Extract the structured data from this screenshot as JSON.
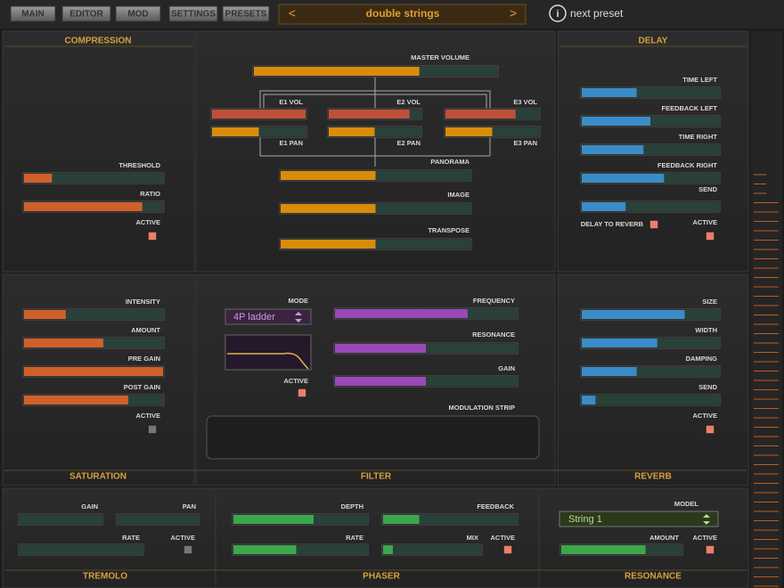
{
  "tabs": [
    "MAIN",
    "EDITOR",
    "MOD",
    "SETTINGS",
    "PRESETS"
  ],
  "preset": {
    "prev": "<",
    "name": "double strings",
    "next": ">"
  },
  "next_preset": {
    "icon": "i",
    "label": "next preset"
  },
  "panels": {
    "compression": {
      "title": "COMPRESSION",
      "color": "#d0602a",
      "sliders": [
        {
          "label": "THRESHOLD",
          "value": 0.2
        },
        {
          "label": "RATIO",
          "value": 0.85
        }
      ],
      "checks": [
        {
          "label": "ACTIVE",
          "on": true
        }
      ]
    },
    "mixer": {
      "color": "#d98c0a",
      "sliders": [
        {
          "label": "MASTER VOLUME",
          "value": 0.68
        },
        {
          "label": "E1 VOL",
          "value": 1.0,
          "color": "#c0503a"
        },
        {
          "label": "E2 VOL",
          "value": 0.88,
          "color": "#c0503a"
        },
        {
          "label": "E3 VOL",
          "value": 0.75,
          "color": "#c0503a"
        },
        {
          "label": "E1 PAN",
          "value": 0.5
        },
        {
          "label": "E2 PAN",
          "value": 0.5
        },
        {
          "label": "E3 PAN",
          "value": 0.5
        },
        {
          "label": "PANORAMA",
          "value": 0.5
        },
        {
          "label": "IMAGE",
          "value": 0.5
        },
        {
          "label": "TRANSPOSE",
          "value": 0.5
        }
      ],
      "checks": []
    },
    "delay": {
      "title": "DELAY",
      "color": "#3a8cc8",
      "sliders": [
        {
          "label": "TIME LEFT",
          "value": 0.4
        },
        {
          "label": "FEEDBACK LEFT",
          "value": 0.5
        },
        {
          "label": "TIME RIGHT",
          "value": 0.45
        },
        {
          "label": "FEEDBACK RIGHT",
          "value": 0.6
        },
        {
          "label": "SEND",
          "value": 0.32
        }
      ],
      "checks": [
        {
          "label": "DELAY TO REVERB",
          "on": true
        },
        {
          "label": "ACTIVE",
          "on": true
        }
      ]
    },
    "saturation": {
      "title": "SATURATION",
      "color": "#d0602a",
      "sliders": [
        {
          "label": "INTENSITY",
          "value": 0.3
        },
        {
          "label": "AMOUNT",
          "value": 0.57
        },
        {
          "label": "PRE GAIN",
          "value": 1.0
        },
        {
          "label": "POST GAIN",
          "value": 0.75
        }
      ],
      "checks": [
        {
          "label": "ACTIVE",
          "on": false
        }
      ]
    },
    "filter": {
      "title": "FILTER",
      "color": "#9a48b8",
      "mode_label": "MODE",
      "mode": "4P ladder",
      "modulation": "MODULATION STRIP",
      "sliders": [
        {
          "label": "FREQUENCY",
          "value": 0.73
        },
        {
          "label": "RESONANCE",
          "value": 0.5
        },
        {
          "label": "GAIN",
          "value": 0.5
        }
      ],
      "checks": [
        {
          "label": "ACTIVE",
          "on": true
        }
      ]
    },
    "reverb": {
      "title": "REVERB",
      "color": "#3a8cc8",
      "sliders": [
        {
          "label": "SIZE",
          "value": 0.75
        },
        {
          "label": "WIDTH",
          "value": 0.55
        },
        {
          "label": "DAMPING",
          "value": 0.4
        },
        {
          "label": "SEND",
          "value": 0.1
        }
      ],
      "checks": [
        {
          "label": "ACTIVE",
          "on": true
        }
      ]
    },
    "tremolo": {
      "title": "TREMOLO",
      "color": "#3aa84a",
      "sliders": [
        {
          "label": "GAIN",
          "value": 0
        },
        {
          "label": "PAN",
          "value": 0
        },
        {
          "label": "RATE",
          "value": 0
        }
      ],
      "checks": [
        {
          "label": "ACTIVE",
          "on": false
        }
      ]
    },
    "phaser": {
      "title": "PHASER",
      "color": "#3aa84a",
      "sliders": [
        {
          "label": "DEPTH",
          "value": 0.6
        },
        {
          "label": "FEEDBACK",
          "value": 0.27
        },
        {
          "label": "RATE",
          "value": 0.47
        },
        {
          "label": "MIX",
          "value": 0.1
        }
      ],
      "checks": [
        {
          "label": "ACTIVE",
          "on": true
        }
      ]
    },
    "resonance": {
      "title": "RESONANCE",
      "color": "#3aa84a",
      "model_label": "MODEL",
      "model": "String 1",
      "sliders": [
        {
          "label": "AMOUNT",
          "value": 0.7
        }
      ],
      "checks": [
        {
          "label": "ACTIVE",
          "on": true
        }
      ]
    }
  }
}
